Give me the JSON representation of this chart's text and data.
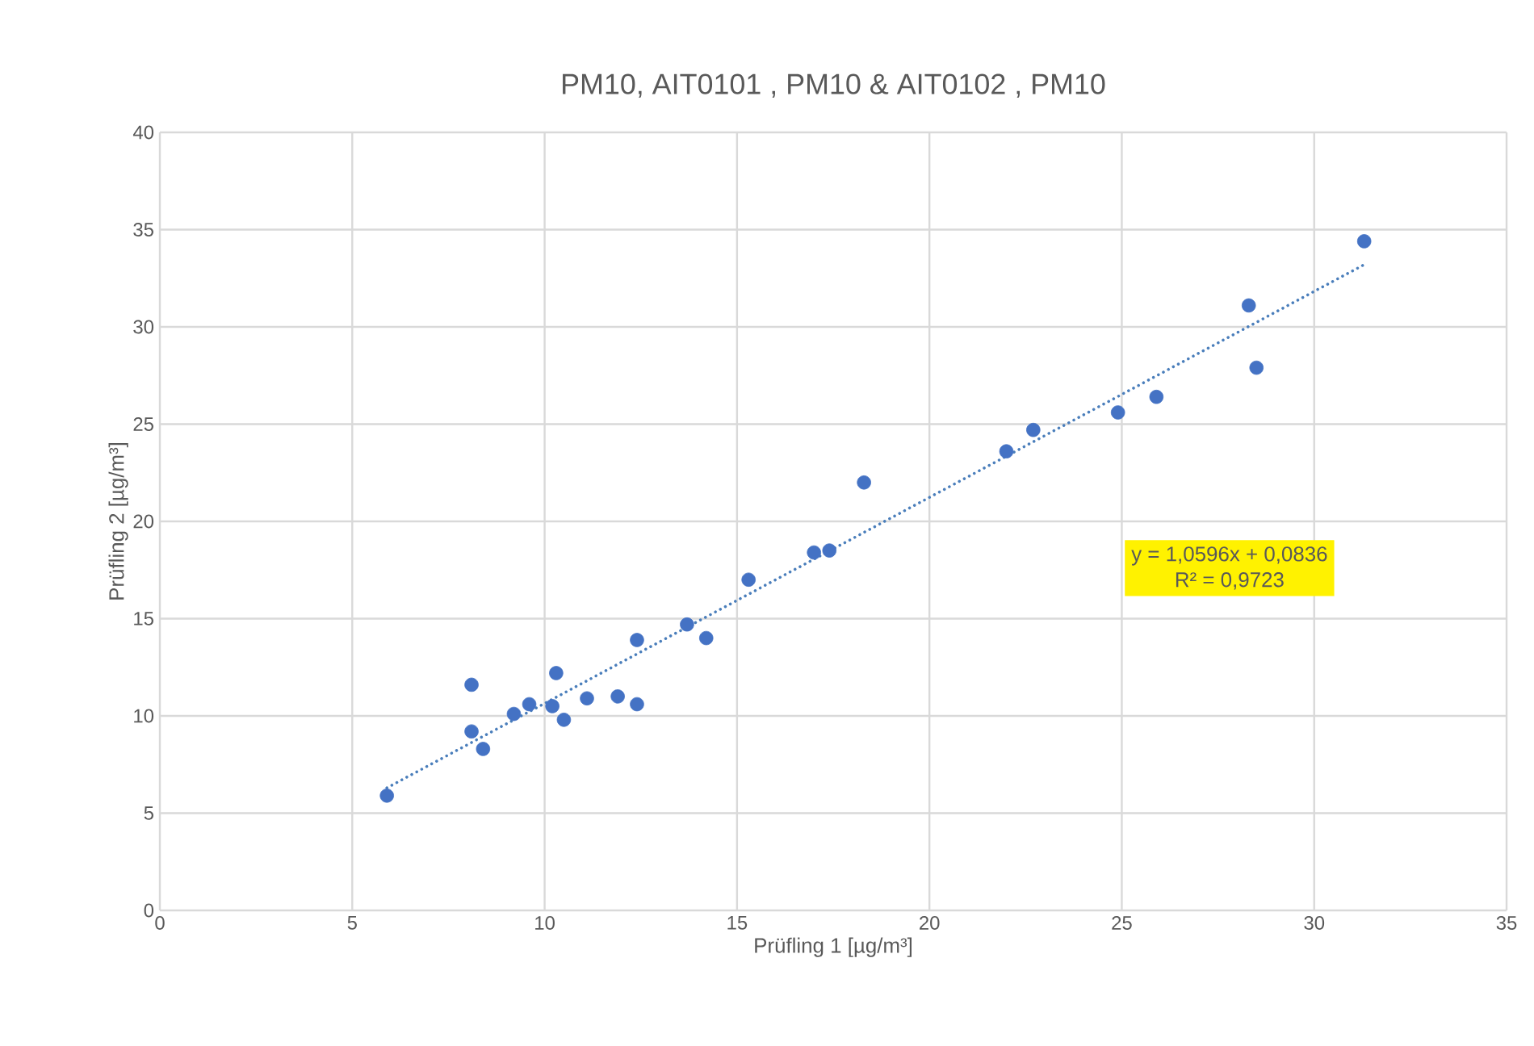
{
  "chart_data": {
    "type": "scatter",
    "title": "PM10, AIT0101 , PM10 & AIT0102 , PM10",
    "xlabel": "Prüfling 1 [µg/m³]",
    "ylabel": "Prüfling 2 [µg/m³]",
    "xlim": [
      0,
      35
    ],
    "xticks": [
      0,
      5,
      10,
      15,
      20,
      25,
      30,
      35
    ],
    "ylim": [
      0,
      40
    ],
    "yticks": [
      0,
      5,
      10,
      15,
      20,
      25,
      30,
      35,
      40
    ],
    "grid": true,
    "series": [
      {
        "color": "#4472c4",
        "marker": "circle",
        "x": [
          5.9,
          8.1,
          8.1,
          8.4,
          9.2,
          9.6,
          10.2,
          10.3,
          10.5,
          11.1,
          11.9,
          12.4,
          12.4,
          13.7,
          14.2,
          15.3,
          17.0,
          17.4,
          18.3,
          22.0,
          22.7,
          24.9,
          25.9,
          28.3,
          28.5,
          31.3
        ],
        "values": [
          5.9,
          11.6,
          9.2,
          8.3,
          10.1,
          10.6,
          10.5,
          12.2,
          9.8,
          10.9,
          11.0,
          10.6,
          13.9,
          14.7,
          14.0,
          17.0,
          18.4,
          18.5,
          22.0,
          23.6,
          24.7,
          25.6,
          26.4,
          31.1,
          27.9,
          34.4
        ]
      },
      {
        "type": "line",
        "color": "#4a7ebb",
        "line_style": "dotted",
        "marker": "none",
        "x": [
          5.9,
          31.3
        ],
        "values": [
          6.3,
          33.2
        ]
      }
    ],
    "annotations": [
      "y = 1,0596x + 0,0836",
      "R² = 0,9723"
    ]
  }
}
